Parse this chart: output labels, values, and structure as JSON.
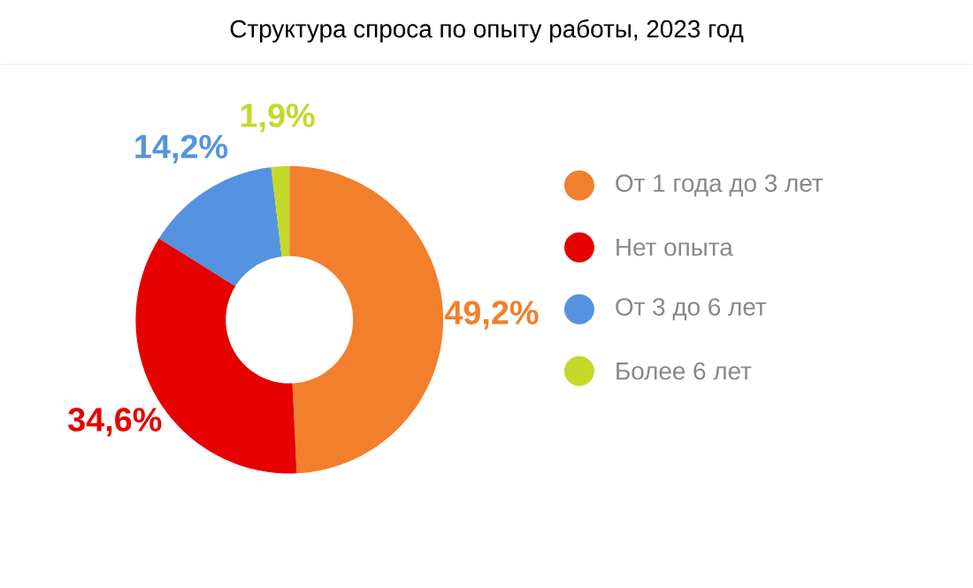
{
  "chart_data": {
    "type": "donut",
    "title": "Структура спроса по опыту работы, 2023 год",
    "categories": [
      "От 1 года до 3 лет",
      "Нет опыта",
      "От 3 до 6 лет",
      "Более 6 лет"
    ],
    "values": [
      49.2,
      34.6,
      14.2,
      1.9
    ],
    "colors": [
      "#f27f2b",
      "#e60000",
      "#5593e0",
      "#c2d92a"
    ],
    "value_labels": [
      "49,2%",
      "34,6%",
      "14,2%",
      "1,9%"
    ],
    "legend": "right"
  }
}
